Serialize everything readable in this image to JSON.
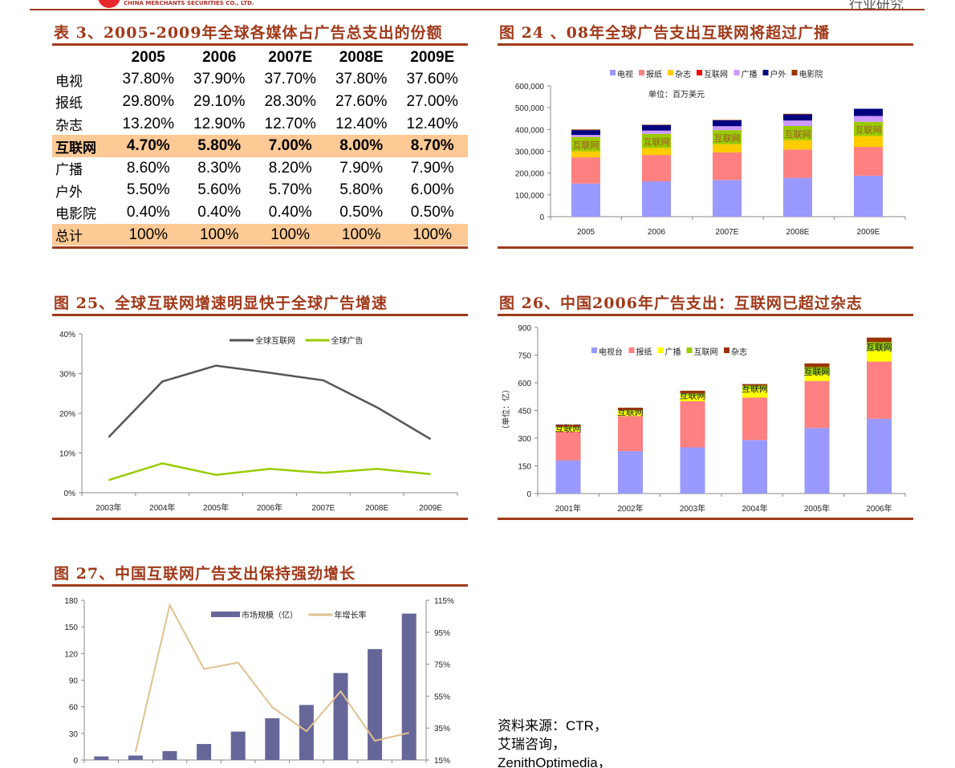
{
  "header": {
    "company_en": "CHINA MERCHANTS SECURITIES CO., LTD.",
    "section": "行业研究"
  },
  "table3": {
    "title": "表 3、2005-2009年全球各媒体占广告总支出的份额",
    "columns": [
      "",
      "2005",
      "2006",
      "2007E",
      "2008E",
      "2009E"
    ],
    "rows": [
      {
        "label": "电视",
        "values": [
          "37.80%",
          "37.90%",
          "37.70%",
          "37.80%",
          "37.60%"
        ]
      },
      {
        "label": "报纸",
        "values": [
          "29.80%",
          "29.10%",
          "28.30%",
          "27.60%",
          "27.00%"
        ]
      },
      {
        "label": "杂志",
        "values": [
          "13.20%",
          "12.90%",
          "12.70%",
          "12.40%",
          "12.40%"
        ]
      },
      {
        "label": "互联网",
        "values": [
          "4.70%",
          "5.80%",
          "7.00%",
          "8.00%",
          "8.70%"
        ],
        "highlight": true,
        "bold": true
      },
      {
        "label": "广播",
        "values": [
          "8.60%",
          "8.30%",
          "8.20%",
          "7.90%",
          "7.90%"
        ]
      },
      {
        "label": "户外",
        "values": [
          "5.50%",
          "5.60%",
          "5.70%",
          "5.80%",
          "6.00%"
        ]
      },
      {
        "label": "电影院",
        "values": [
          "0.40%",
          "0.40%",
          "0.40%",
          "0.50%",
          "0.50%"
        ]
      },
      {
        "label": "总计",
        "values": [
          "100%",
          "100%",
          "100%",
          "100%",
          "100%"
        ],
        "highlight": true
      }
    ]
  },
  "titles": {
    "fig24": "图 24 、08年全球广告支出互联网将超过广播",
    "fig25": "图 25、全球互联网增速明显快于全球广告增速",
    "fig26": "图 26、中国2006年广告支出：互联网已超过杂志",
    "fig27": "图 27、中国互联网广告支出保持强劲增长"
  },
  "source": {
    "lines": [
      "资料来源：CTR，",
      "艾瑞咨询，",
      "ZenithOptimedia，"
    ]
  },
  "chart_data": [
    {
      "id": "fig24",
      "type": "bar",
      "stacked": true,
      "annotation": "单位：百万美元",
      "segment_label": "互联网",
      "categories": [
        "2005",
        "2006",
        "2007E",
        "2008E",
        "2009E"
      ],
      "ylim": [
        0,
        600000
      ],
      "yticks": [
        0,
        100000,
        200000,
        300000,
        400000,
        500000,
        600000
      ],
      "ytick_labels": [
        "0",
        "100,000",
        "200,000",
        "300,000",
        "400,000",
        "500,000",
        "600,000"
      ],
      "legend_position": "top",
      "series": [
        {
          "name": "电视",
          "color": "#9999ff",
          "values": [
            152000,
            162000,
            168000,
            178000,
            188000
          ]
        },
        {
          "name": "报纸",
          "color": "#ff8080",
          "values": [
            120000,
            121000,
            127000,
            130000,
            132000
          ]
        },
        {
          "name": "杂志",
          "color": "#ffcc00",
          "values": [
            28000,
            32000,
            37000,
            43000,
            50000
          ]
        },
        {
          "name": "互联网",
          "color": "#ff0000",
          "label_bg": "#99cc00",
          "values": [
            65000,
            65000,
            65000,
            65000,
            65000
          ]
        },
        {
          "name": "广播",
          "color": "#cc99ff",
          "values": [
            10000,
            15000,
            18000,
            25000,
            27000
          ]
        },
        {
          "name": "户外",
          "color": "#000080",
          "values": [
            22000,
            25000,
            27000,
            28000,
            33000
          ]
        },
        {
          "name": "电影院",
          "color": "#993300",
          "values": [
            3000,
            2000,
            2000,
            3000,
            0
          ]
        }
      ]
    },
    {
      "id": "fig25",
      "type": "line",
      "categories": [
        "2003年",
        "2004年",
        "2005年",
        "2006年",
        "2007E",
        "2008E",
        "2009E"
      ],
      "ylim": [
        0,
        40
      ],
      "yticks": [
        0,
        10,
        20,
        30,
        40
      ],
      "ytick_labels": [
        "0%",
        "10%",
        "20%",
        "30%",
        "40%"
      ],
      "legend_position": "top-right",
      "series": [
        {
          "name": "全球互联网",
          "color": "#555555",
          "values": [
            14,
            28,
            32,
            30.2,
            28.3,
            21.5,
            13.5
          ]
        },
        {
          "name": "全球广告",
          "color": "#99cc00",
          "values": [
            3.2,
            7.4,
            4.5,
            6,
            5,
            6,
            4.7
          ]
        }
      ]
    },
    {
      "id": "fig26",
      "type": "bar",
      "stacked": true,
      "ylabel": "（单位：亿）",
      "segment_label": "互联网",
      "categories": [
        "2001年",
        "2002年",
        "2003年",
        "2004年",
        "2005年",
        "2006年"
      ],
      "ylim": [
        0,
        900
      ],
      "yticks": [
        0,
        150,
        300,
        450,
        600,
        750,
        900
      ],
      "ytick_labels": [
        "0",
        "150",
        "300",
        "450",
        "600",
        "750",
        "900"
      ],
      "legend_position": "top-left",
      "series": [
        {
          "name": "电视台",
          "color": "#9999ff",
          "values": [
            180,
            230,
            250,
            290,
            355,
            405
          ]
        },
        {
          "name": "报纸",
          "color": "#ff8080",
          "values": [
            155,
            190,
            250,
            230,
            255,
            310
          ]
        },
        {
          "name": "广播",
          "color": "#ffff00",
          "values": [
            20,
            25,
            30,
            45,
            35,
            60
          ]
        },
        {
          "name": "互联网",
          "color": "#99cc00",
          "values": [
            7,
            7,
            12,
            20,
            40,
            45
          ]
        },
        {
          "name": "杂志",
          "color": "#993300",
          "values": [
            10,
            13,
            15,
            8,
            20,
            25
          ]
        }
      ]
    },
    {
      "id": "fig27",
      "type": "bar+line",
      "categories": [
        "",
        "",
        "",
        "",
        "",
        "",
        "",
        "",
        "",
        ""
      ],
      "ylim": [
        0,
        180
      ],
      "yticks": [
        0,
        30,
        60,
        90,
        120,
        150,
        180
      ],
      "ytick_labels": [
        "0",
        "30",
        "60",
        "90",
        "120",
        "150",
        "180"
      ],
      "y2lim": [
        15,
        115
      ],
      "y2ticks": [
        15,
        35,
        55,
        75,
        95,
        115
      ],
      "y2tick_labels": [
        "15%",
        "35%",
        "55%",
        "75%",
        "95%",
        "115%"
      ],
      "legend_position": "top-right",
      "series": [
        {
          "name": "市场规模（亿）",
          "kind": "bar",
          "color": "#666699",
          "values": [
            4,
            5,
            10,
            18,
            32,
            47,
            62,
            98,
            125,
            165
          ]
        },
        {
          "name": "年增长率",
          "kind": "line",
          "axis": "right",
          "color": "#e0c090",
          "values": [
            null,
            20,
            112,
            72,
            76,
            48,
            33,
            58,
            27,
            32
          ]
        }
      ]
    }
  ]
}
